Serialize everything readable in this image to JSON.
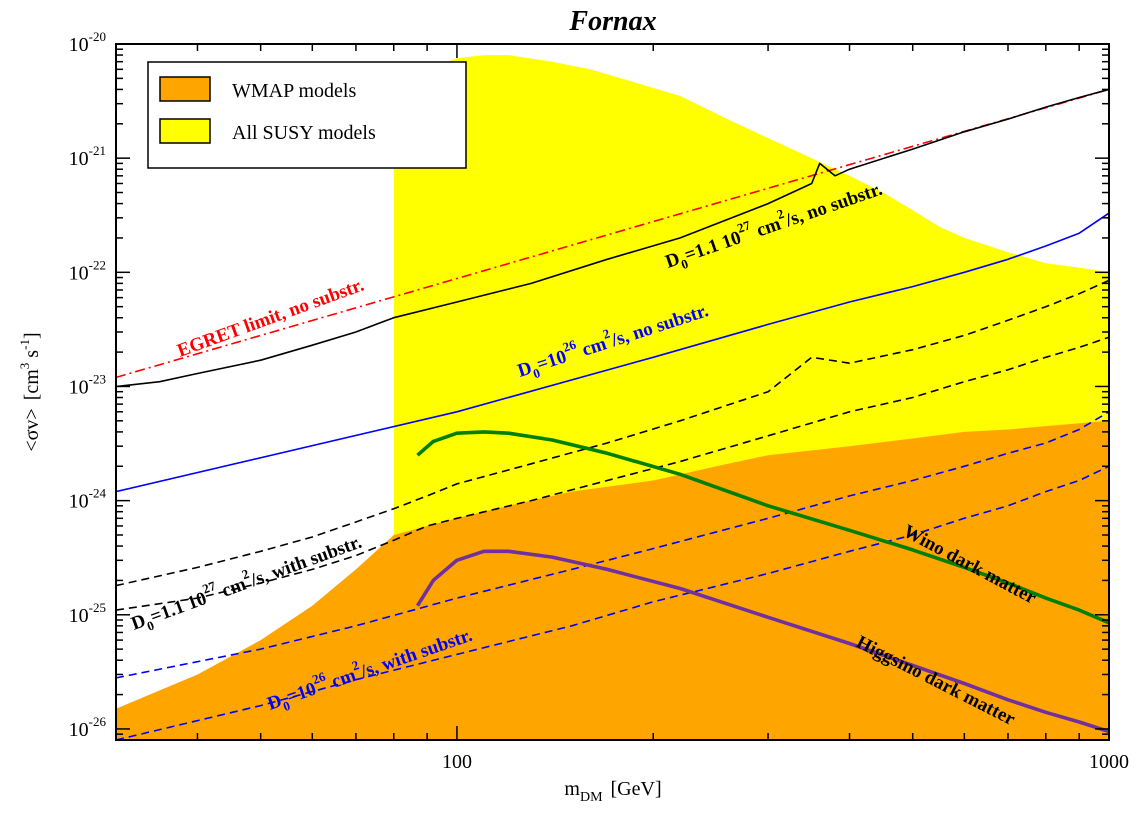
{
  "chart_data": {
    "type": "line",
    "title": "Fornax",
    "x_scale": "log",
    "y_scale": "log",
    "xlim": [
      30,
      1000
    ],
    "ylim": [
      8e-27,
      1e-20
    ],
    "xlabel": {
      "main": "m",
      "sub": "DM",
      "unit": "[GeV]"
    },
    "ylabel": {
      "main": "<σv>",
      "unit_open": "[cm",
      "sup1": "3",
      "mid": " s",
      "sup2": "-1",
      "unit_close": "]"
    },
    "x_ticks": [
      {
        "value": 100,
        "label": "100"
      },
      {
        "value": 1000,
        "label": "1000"
      }
    ],
    "y_ticks": [
      {
        "value": 1e-26,
        "base": "10",
        "exp": "-26"
      },
      {
        "value": 1e-25,
        "base": "10",
        "exp": "-25"
      },
      {
        "value": 1e-24,
        "base": "10",
        "exp": "-24"
      },
      {
        "value": 1e-23,
        "base": "10",
        "exp": "-23"
      },
      {
        "value": 1e-22,
        "base": "10",
        "exp": "-22"
      },
      {
        "value": 1e-21,
        "base": "10",
        "exp": "-21"
      },
      {
        "value": 1e-20,
        "base": "10",
        "exp": "-20"
      }
    ],
    "legend": {
      "position": "top-left",
      "entries": [
        {
          "label": "WMAP models",
          "color": "#ffa500"
        },
        {
          "label": "All SUSY models",
          "color": "#ffff00"
        }
      ]
    },
    "regions": [
      {
        "name": "All SUSY models",
        "color": "#ffff00",
        "upper_x": [
          80,
          90,
          100,
          110,
          120,
          140,
          160,
          190,
          220,
          260,
          300,
          350,
          400,
          450,
          500,
          550,
          600,
          700,
          800,
          900,
          1000
        ],
        "upper_y": [
          4e-21,
          6e-21,
          7.5e-21,
          8e-21,
          8e-21,
          7e-21,
          6e-21,
          4.5e-21,
          3.5e-21,
          2.2e-21,
          1.5e-21,
          1e-21,
          7e-22,
          5e-22,
          3.5e-22,
          2.5e-22,
          2e-22,
          1.5e-22,
          1.2e-22,
          1.1e-22,
          1e-22
        ]
      },
      {
        "name": "WMAP models",
        "color": "#ffa500",
        "upper_x": [
          30,
          40,
          50,
          60,
          70,
          80,
          90,
          100,
          120,
          150,
          200,
          250,
          300,
          400,
          500,
          600,
          700,
          800,
          1000
        ],
        "upper_y": [
          1.5e-26,
          3e-26,
          6e-26,
          1.2e-25,
          2.5e-25,
          5e-25,
          6e-25,
          7e-25,
          9e-25,
          1.2e-24,
          1.5e-24,
          2e-24,
          2.5e-24,
          3e-24,
          3.5e-24,
          4e-24,
          4.2e-24,
          4.5e-24,
          5e-24
        ]
      }
    ],
    "series": [
      {
        "name": "EGRET limit, no substr.",
        "color": "#ff0000",
        "style": "dashdot",
        "width": 1.6,
        "x": [
          30,
          1000
        ],
        "y": [
          1.2e-23,
          4e-21
        ]
      },
      {
        "name": "D0=1.1e27 cm2/s, no substr.",
        "color": "#000000",
        "style": "solid",
        "width": 1.6,
        "x": [
          30,
          35,
          40,
          50,
          60,
          70,
          80,
          100,
          130,
          170,
          220,
          300,
          350,
          360,
          380,
          400,
          500,
          600,
          700,
          800,
          900,
          1000
        ],
        "y": [
          1e-23,
          1.1e-23,
          1.3e-23,
          1.7e-23,
          2.3e-23,
          3e-23,
          4e-23,
          5.5e-23,
          8e-23,
          1.3e-22,
          2e-22,
          4e-22,
          6e-22,
          9e-22,
          7e-22,
          8e-22,
          1.2e-21,
          1.7e-21,
          2.2e-21,
          2.8e-21,
          3.4e-21,
          4e-21
        ]
      },
      {
        "name": "D0=1e26 cm2/s, no substr.",
        "color": "#0000ff",
        "style": "solid",
        "width": 1.6,
        "x": [
          30,
          100,
          200,
          300,
          400,
          500,
          600,
          700,
          800,
          900,
          1000
        ],
        "y": [
          1.2e-24,
          6e-24,
          1.8e-23,
          3.5e-23,
          5.5e-23,
          7.5e-23,
          1e-22,
          1.3e-22,
          1.7e-22,
          2.2e-22,
          3.3e-22
        ]
      },
      {
        "name": "D0=1.1e27 cm2/s, with substr. (upper)",
        "color": "#000000",
        "style": "dashed",
        "width": 1.6,
        "x": [
          30,
          40,
          50,
          60,
          70,
          80,
          90,
          100,
          130,
          170,
          220,
          300,
          350,
          400,
          500,
          600,
          700,
          800,
          900,
          1000
        ],
        "y": [
          1.8e-25,
          2.6e-25,
          3.6e-25,
          4.8e-25,
          6.5e-25,
          8.5e-25,
          1.1e-24,
          1.4e-24,
          2.1e-24,
          3.2e-24,
          5e-24,
          9e-24,
          1.8e-23,
          1.6e-23,
          2.1e-23,
          2.8e-23,
          3.8e-23,
          5e-23,
          6.5e-23,
          8.5e-23
        ]
      },
      {
        "name": "D0=1.1e27 cm2/s, with substr. (lower)",
        "color": "#000000",
        "style": "dashed",
        "width": 1.6,
        "x": [
          30,
          40,
          50,
          60,
          70,
          80,
          90,
          100,
          130,
          170,
          220,
          300,
          400,
          500,
          600,
          700,
          800,
          900,
          1000
        ],
        "y": [
          1.1e-25,
          1.4e-25,
          1.9e-25,
          2.5e-25,
          3.3e-25,
          4.5e-25,
          6e-25,
          7e-25,
          1e-24,
          1.5e-24,
          2.2e-24,
          3.7e-24,
          6e-24,
          8e-24,
          1.1e-23,
          1.4e-23,
          1.8e-23,
          2.2e-23,
          2.7e-23
        ]
      },
      {
        "name": "D0=1e26 cm2/s, with substr. (upper)",
        "color": "#0000ff",
        "style": "dashed",
        "width": 1.6,
        "x": [
          30,
          50,
          70,
          100,
          150,
          200,
          300,
          400,
          500,
          600,
          700,
          800,
          900,
          1000
        ],
        "y": [
          2.8e-26,
          5e-26,
          8e-26,
          1.4e-25,
          2.5e-25,
          3.8e-25,
          7e-25,
          1.1e-24,
          1.5e-24,
          2e-24,
          2.6e-24,
          3.2e-24,
          4.2e-24,
          6e-24
        ]
      },
      {
        "name": "D0=1e26 cm2/s, with substr. (lower)",
        "color": "#0000ff",
        "style": "dashed",
        "width": 1.6,
        "x": [
          30,
          50,
          70,
          100,
          150,
          200,
          300,
          400,
          500,
          600,
          700,
          800,
          900,
          1000
        ],
        "y": [
          8e-27,
          1.6e-26,
          2.7e-26,
          4.5e-26,
          8e-26,
          1.3e-25,
          2.3e-25,
          3.6e-25,
          5e-25,
          7e-25,
          9e-25,
          1.2e-24,
          1.5e-24,
          2e-24
        ]
      },
      {
        "name": "Wino dark matter",
        "color": "#008000",
        "style": "solid",
        "width": 3.6,
        "x": [
          87,
          92,
          100,
          110,
          120,
          140,
          170,
          220,
          300,
          400,
          500,
          600,
          700,
          800,
          900,
          1000
        ],
        "y": [
          2.5e-24,
          3.3e-24,
          3.9e-24,
          4e-24,
          3.9e-24,
          3.4e-24,
          2.6e-24,
          1.7e-24,
          9e-25,
          5.5e-25,
          3.7e-25,
          2.6e-25,
          1.9e-25,
          1.4e-25,
          1.1e-25,
          8.5e-26
        ]
      },
      {
        "name": "Higgsino dark matter",
        "color": "#7030a0",
        "style": "solid",
        "width": 3.6,
        "x": [
          87,
          92,
          100,
          110,
          120,
          140,
          170,
          220,
          300,
          400,
          500,
          600,
          700,
          800,
          900,
          1000
        ],
        "y": [
          1.2e-25,
          2e-25,
          3e-25,
          3.6e-25,
          3.6e-25,
          3.2e-25,
          2.5e-25,
          1.7e-25,
          9.5e-26,
          5.6e-26,
          3.6e-26,
          2.5e-26,
          1.8e-26,
          1.4e-26,
          1.15e-26,
          9.5e-27
        ]
      }
    ],
    "annotations": [
      {
        "key": "egret",
        "text": "EGRET limit, no substr.",
        "color": "#ff0000"
      },
      {
        "key": "black_nosub",
        "pre": "D",
        "sub": "0",
        "mid": "=1.1 10",
        "sup": "27",
        "post1": " cm",
        "sup2": "2",
        "post2": "/s, no substr.",
        "color": "#000000"
      },
      {
        "key": "blue_nosub",
        "pre": "D",
        "sub": "0",
        "mid": "=10",
        "sup": "26",
        "post1": " cm",
        "sup2": "2",
        "post2": "/s, no substr.",
        "color": "#0000ff"
      },
      {
        "key": "black_sub",
        "pre": "D",
        "sub": "0",
        "mid": "=1.1 10",
        "sup": "27",
        "post1": " cm",
        "sup2": "2",
        "post2": "/s, with substr.",
        "color": "#000000"
      },
      {
        "key": "blue_sub",
        "pre": "D",
        "sub": "0",
        "mid": "=10",
        "sup": "26",
        "post1": " cm",
        "sup2": "2",
        "post2": "/s, with substr.",
        "color": "#0000ff"
      },
      {
        "key": "wino",
        "text": "Wino dark matter",
        "color": "#000000"
      },
      {
        "key": "higgsino",
        "text": "Higgsino dark matter",
        "color": "#000000"
      }
    ]
  }
}
